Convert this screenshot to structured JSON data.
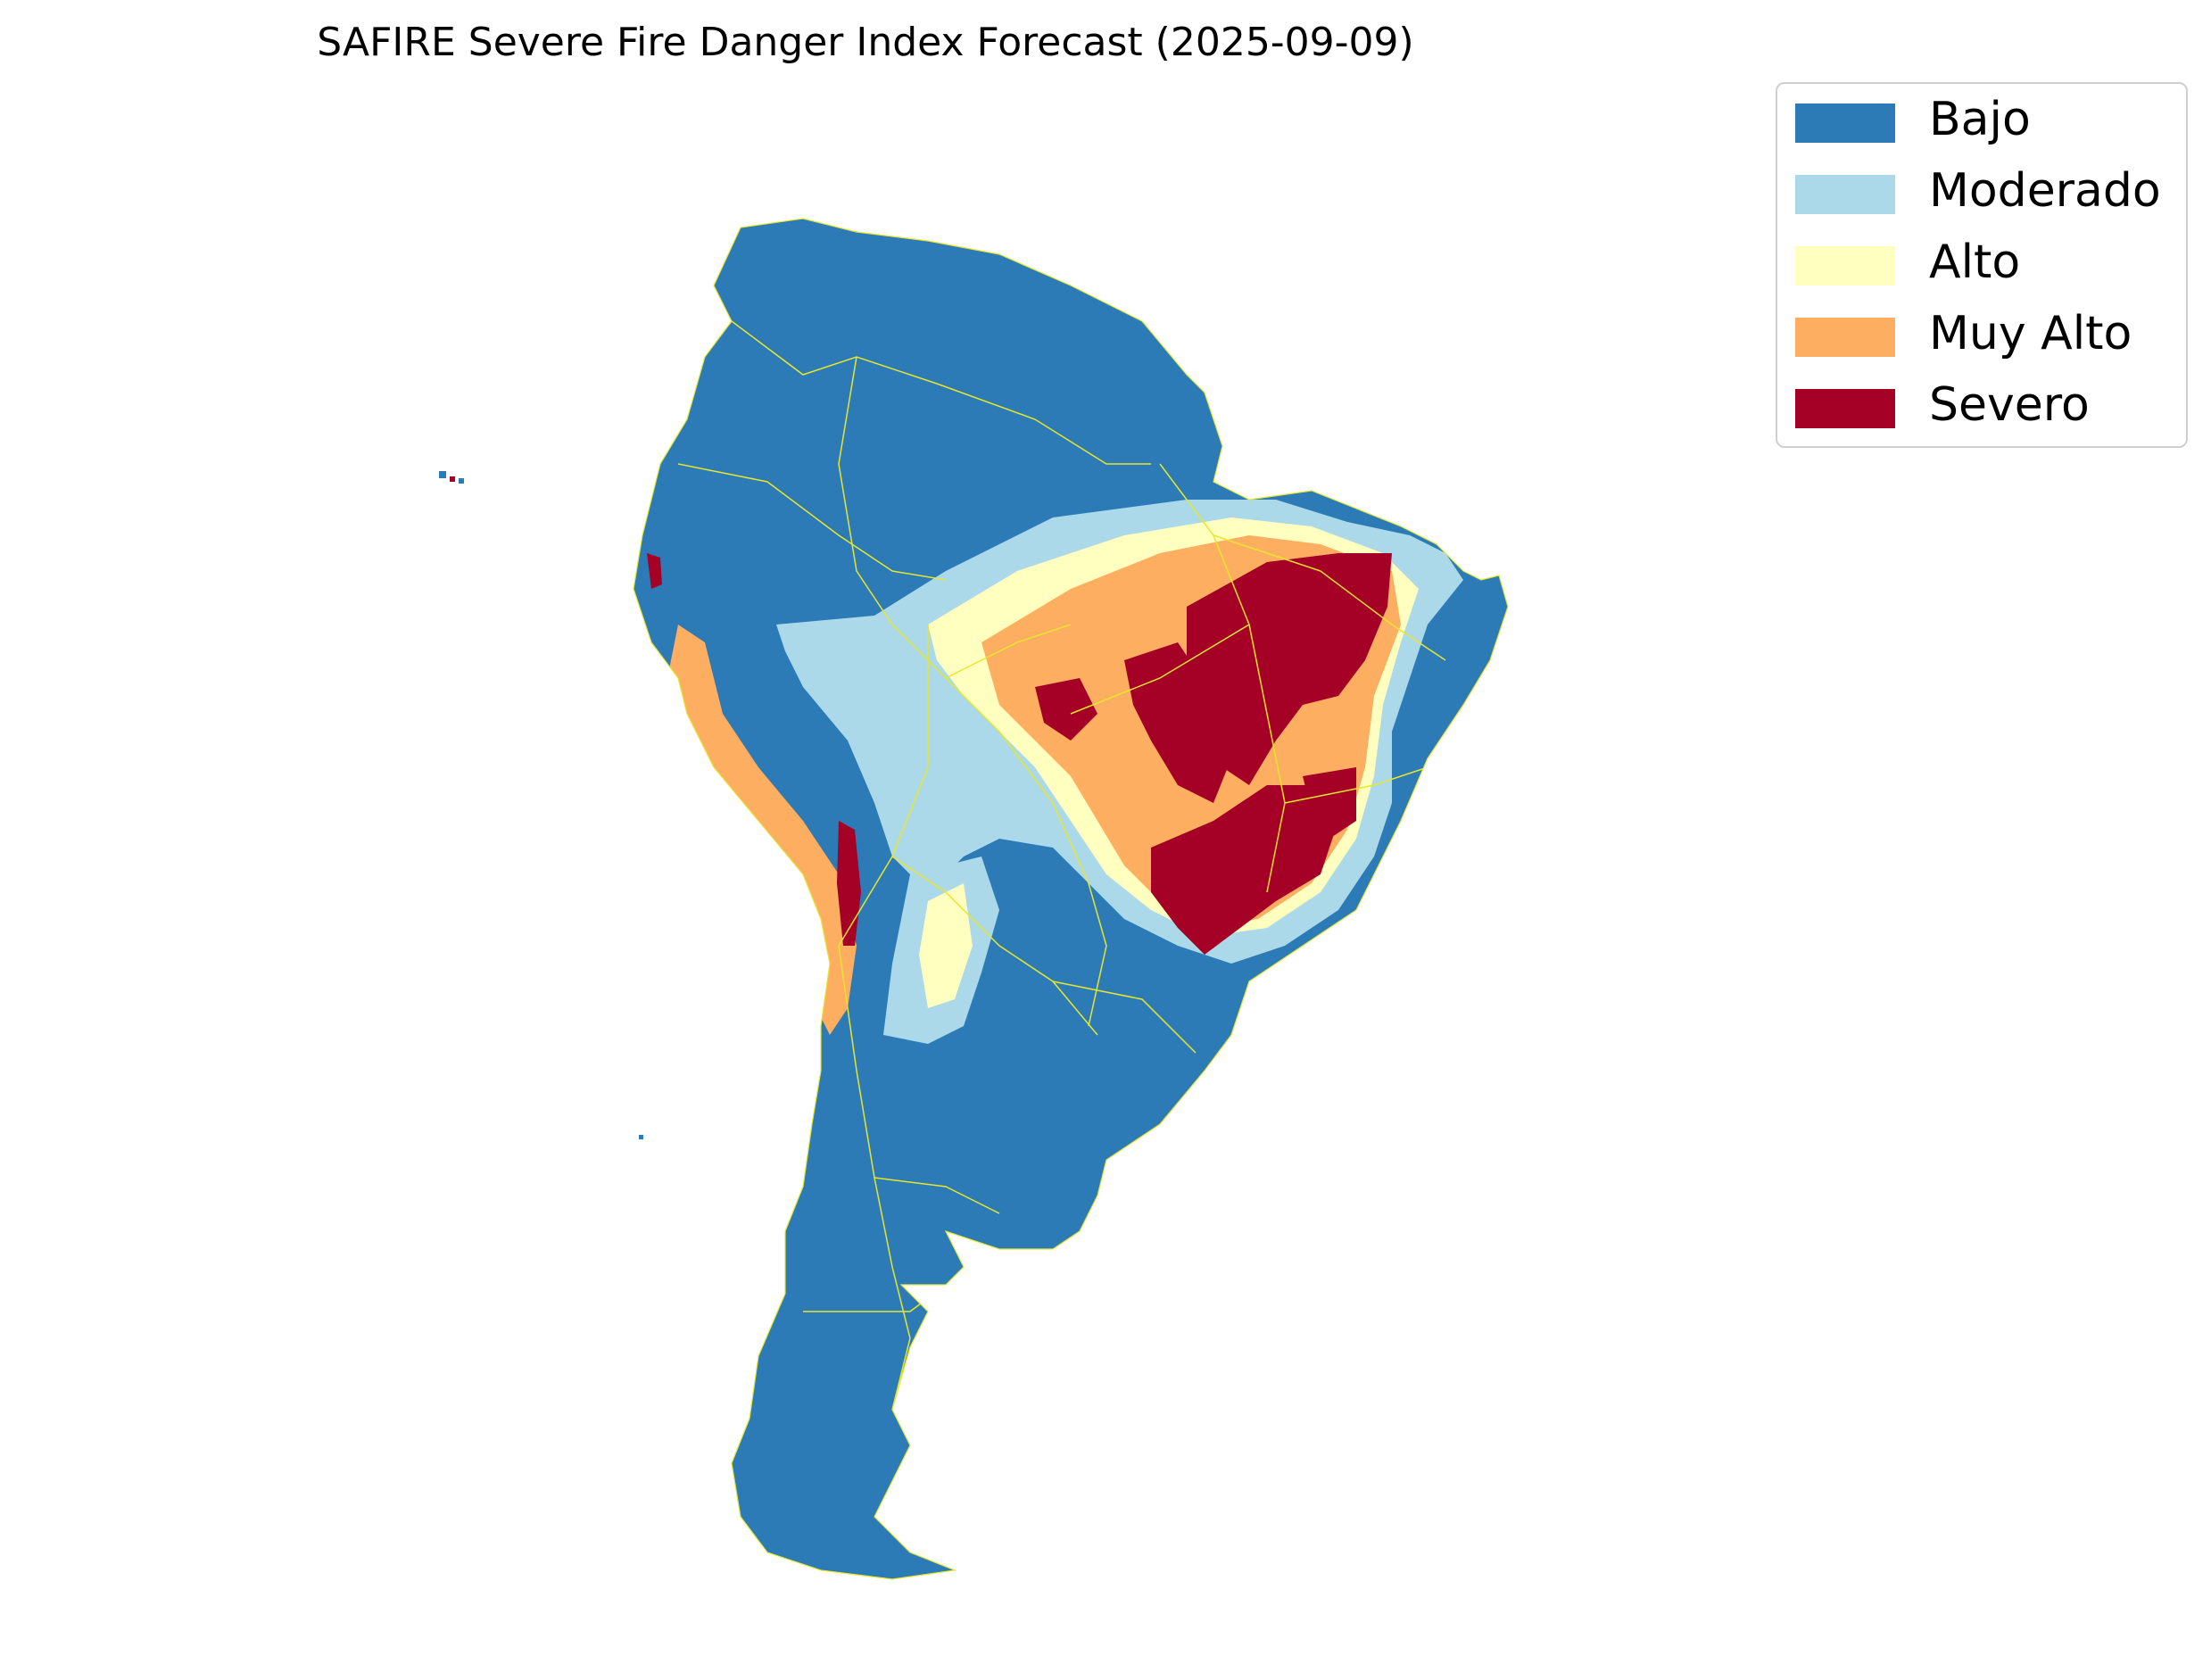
{
  "title": "SAFIRE Severe Fire Danger Index Forecast (2025-09-09)",
  "legend": {
    "items": [
      {
        "label": "Bajo",
        "color": "#2c7bb6"
      },
      {
        "label": "Moderado",
        "color": "#abd9e9"
      },
      {
        "label": "Alto",
        "color": "#ffffbf"
      },
      {
        "label": "Muy Alto",
        "color": "#fdae61"
      },
      {
        "label": "Severo",
        "color": "#a50026"
      }
    ]
  },
  "map": {
    "region": "South America",
    "boundary_color": "#e6e62e"
  }
}
